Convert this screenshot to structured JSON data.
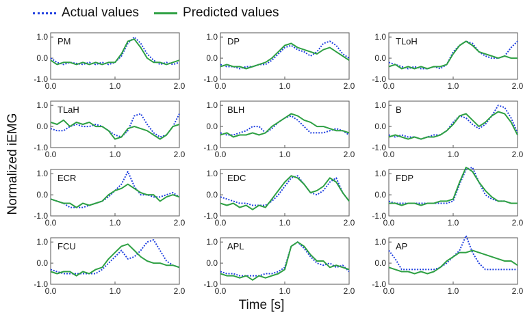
{
  "chart_data": {
    "type": "line",
    "xlabel": "Time [s]",
    "ylabel": "Normalized iEMG",
    "xlim": [
      0,
      2
    ],
    "ylim": [
      -1,
      1.2
    ],
    "xticks": [
      "0.0",
      "1.0",
      "2.0"
    ],
    "yticks": [
      "-1.0",
      "0.0",
      "1.0"
    ],
    "legend": {
      "position": "top-left",
      "entries": [
        {
          "label": "Actual values",
          "color": "#2040e0",
          "style": "dotted"
        },
        {
          "label": "Predicted values",
          "color": "#2ea043",
          "style": "solid"
        }
      ]
    },
    "x": [
      0,
      0.1,
      0.2,
      0.3,
      0.4,
      0.5,
      0.6,
      0.7,
      0.8,
      0.9,
      1.0,
      1.1,
      1.2,
      1.3,
      1.4,
      1.5,
      1.6,
      1.7,
      1.8,
      1.9,
      2.0
    ],
    "panels": [
      {
        "title": "PM",
        "actual": [
          0.0,
          -0.2,
          -0.3,
          -0.2,
          -0.25,
          -0.3,
          -0.2,
          -0.3,
          -0.2,
          -0.3,
          -0.2,
          0.1,
          0.7,
          1.0,
          0.7,
          0.2,
          -0.1,
          -0.3,
          -0.2,
          -0.3,
          -0.2
        ],
        "predicted": [
          -0.1,
          -0.3,
          -0.2,
          -0.2,
          -0.3,
          -0.2,
          -0.3,
          -0.2,
          -0.3,
          -0.2,
          -0.2,
          0.2,
          0.8,
          0.9,
          0.5,
          0.0,
          -0.2,
          -0.2,
          -0.3,
          -0.2,
          -0.1
        ]
      },
      {
        "title": "DP",
        "actual": [
          -0.3,
          -0.4,
          -0.4,
          -0.5,
          -0.4,
          -0.4,
          -0.3,
          -0.3,
          -0.1,
          0.2,
          0.5,
          0.6,
          0.4,
          0.3,
          0.1,
          0.3,
          0.7,
          0.8,
          0.6,
          0.2,
          0.0
        ],
        "predicted": [
          -0.4,
          -0.3,
          -0.4,
          -0.4,
          -0.5,
          -0.4,
          -0.3,
          -0.2,
          0.0,
          0.3,
          0.6,
          0.7,
          0.5,
          0.4,
          0.3,
          0.2,
          0.4,
          0.5,
          0.3,
          0.1,
          -0.1
        ]
      },
      {
        "title": "TLoH",
        "actual": [
          -0.2,
          -0.3,
          -0.4,
          -0.5,
          -0.4,
          -0.5,
          -0.5,
          -0.4,
          -0.5,
          -0.3,
          0.3,
          0.6,
          0.8,
          0.7,
          0.3,
          0.1,
          0.0,
          0.0,
          0.1,
          0.5,
          0.8
        ],
        "predicted": [
          -0.4,
          -0.3,
          -0.5,
          -0.4,
          -0.5,
          -0.4,
          -0.5,
          -0.4,
          -0.4,
          -0.3,
          0.2,
          0.6,
          0.8,
          0.6,
          0.3,
          0.2,
          0.1,
          0.0,
          0.1,
          0.0,
          0.0
        ]
      },
      {
        "title": "TLaH",
        "actual": [
          -0.1,
          -0.2,
          -0.2,
          0.0,
          0.1,
          0.0,
          0.0,
          0.1,
          0.0,
          -0.2,
          -0.4,
          -0.5,
          -0.2,
          0.5,
          0.6,
          0.1,
          -0.3,
          -0.5,
          -0.4,
          0.0,
          0.6
        ],
        "predicted": [
          0.2,
          0.1,
          0.3,
          0.0,
          0.2,
          0.1,
          0.2,
          0.0,
          0.0,
          -0.2,
          -0.6,
          -0.5,
          -0.1,
          0.0,
          -0.1,
          -0.2,
          -0.4,
          -0.6,
          -0.4,
          0.0,
          0.1
        ]
      },
      {
        "title": "BLH",
        "actual": [
          -0.3,
          -0.4,
          -0.4,
          -0.3,
          -0.2,
          0.0,
          0.0,
          -0.3,
          -0.1,
          0.2,
          0.4,
          0.5,
          0.3,
          0.0,
          -0.3,
          -0.3,
          -0.3,
          -0.2,
          -0.1,
          -0.2,
          -0.4
        ],
        "predicted": [
          -0.4,
          -0.3,
          -0.5,
          -0.4,
          -0.4,
          -0.3,
          -0.4,
          -0.3,
          0.0,
          0.2,
          0.4,
          0.6,
          0.5,
          0.3,
          0.2,
          0.0,
          0.0,
          -0.1,
          -0.2,
          -0.2,
          -0.3
        ]
      },
      {
        "title": "B",
        "actual": [
          -0.4,
          -0.5,
          -0.4,
          -0.5,
          -0.5,
          -0.6,
          -0.5,
          -0.4,
          -0.4,
          -0.2,
          0.2,
          0.5,
          0.4,
          0.1,
          -0.1,
          0.1,
          0.5,
          1.0,
          0.9,
          0.4,
          -0.3
        ],
        "predicted": [
          -0.5,
          -0.4,
          -0.5,
          -0.6,
          -0.5,
          -0.6,
          -0.5,
          -0.5,
          -0.4,
          -0.2,
          0.1,
          0.5,
          0.6,
          0.3,
          0.0,
          0.2,
          0.5,
          0.7,
          0.6,
          0.2,
          -0.4
        ]
      },
      {
        "title": "ECR",
        "actual": [
          -0.2,
          -0.3,
          -0.4,
          -0.6,
          -0.6,
          -0.6,
          -0.5,
          -0.4,
          -0.3,
          -0.1,
          0.2,
          0.5,
          1.1,
          0.4,
          0.0,
          0.0,
          -0.1,
          -0.1,
          0.0,
          0.1,
          -0.1
        ],
        "predicted": [
          -0.2,
          -0.3,
          -0.4,
          -0.4,
          -0.6,
          -0.4,
          -0.5,
          -0.4,
          -0.3,
          0.0,
          0.2,
          0.3,
          0.5,
          0.3,
          0.1,
          0.0,
          0.0,
          -0.3,
          -0.1,
          0.0,
          -0.1
        ]
      },
      {
        "title": "EDC",
        "actual": [
          -0.1,
          -0.2,
          -0.3,
          -0.4,
          -0.4,
          -0.5,
          -0.5,
          -0.5,
          -0.3,
          0.0,
          0.4,
          0.8,
          0.9,
          0.5,
          0.1,
          0.0,
          0.2,
          0.6,
          0.8,
          0.1,
          -0.3
        ],
        "predicted": [
          -0.4,
          -0.5,
          -0.4,
          -0.6,
          -0.5,
          -0.7,
          -0.5,
          -0.6,
          -0.2,
          0.2,
          0.6,
          0.9,
          0.8,
          0.5,
          0.1,
          0.2,
          0.4,
          0.8,
          0.6,
          0.1,
          -0.3
        ]
      },
      {
        "title": "FDP",
        "actual": [
          -0.3,
          -0.4,
          -0.4,
          -0.4,
          -0.4,
          -0.4,
          -0.4,
          -0.4,
          -0.4,
          -0.4,
          -0.3,
          0.5,
          1.2,
          1.3,
          0.6,
          0.0,
          -0.2,
          -0.3,
          -0.3,
          -0.4,
          -0.4
        ],
        "predicted": [
          -0.4,
          -0.4,
          -0.5,
          -0.4,
          -0.4,
          -0.5,
          -0.4,
          -0.4,
          -0.3,
          -0.3,
          -0.2,
          0.6,
          1.3,
          1.1,
          0.6,
          0.2,
          -0.1,
          -0.3,
          -0.3,
          -0.4,
          -0.4
        ]
      },
      {
        "title": "FCU",
        "actual": [
          -0.3,
          -0.4,
          -0.5,
          -0.5,
          -0.5,
          -0.5,
          -0.5,
          -0.5,
          -0.3,
          0.0,
          0.3,
          0.6,
          0.2,
          0.3,
          0.6,
          1.0,
          1.1,
          0.6,
          0.1,
          -0.1,
          -0.2
        ],
        "predicted": [
          -0.4,
          -0.5,
          -0.4,
          -0.4,
          -0.6,
          -0.4,
          -0.5,
          -0.3,
          -0.2,
          0.2,
          0.5,
          0.8,
          0.9,
          0.6,
          0.3,
          0.1,
          0.0,
          0.0,
          -0.1,
          -0.1,
          -0.2
        ]
      },
      {
        "title": "APL",
        "actual": [
          -0.4,
          -0.5,
          -0.5,
          -0.6,
          -0.6,
          -0.6,
          -0.6,
          -0.5,
          -0.5,
          -0.4,
          -0.2,
          0.8,
          1.0,
          0.7,
          0.3,
          0.0,
          -0.1,
          0.0,
          -0.2,
          -0.1,
          -0.4
        ],
        "predicted": [
          -0.5,
          -0.6,
          -0.6,
          -0.7,
          -0.6,
          -0.8,
          -0.6,
          -0.7,
          -0.6,
          -0.5,
          -0.3,
          0.8,
          1.0,
          0.8,
          0.4,
          0.1,
          0.1,
          -0.2,
          -0.1,
          -0.2,
          -0.3
        ]
      },
      {
        "title": "AP",
        "actual": [
          0.6,
          0.2,
          -0.3,
          -0.3,
          -0.3,
          -0.3,
          -0.3,
          -0.3,
          -0.2,
          0.0,
          0.3,
          0.6,
          1.3,
          0.5,
          0.0,
          -0.3,
          -0.3,
          -0.3,
          -0.3,
          -0.3,
          -0.3
        ],
        "predicted": [
          -0.2,
          -0.3,
          -0.4,
          -0.4,
          -0.5,
          -0.4,
          -0.5,
          -0.4,
          -0.2,
          0.1,
          0.3,
          0.5,
          0.5,
          0.6,
          0.5,
          0.4,
          0.3,
          0.2,
          0.1,
          0.1,
          -0.1
        ]
      }
    ]
  }
}
